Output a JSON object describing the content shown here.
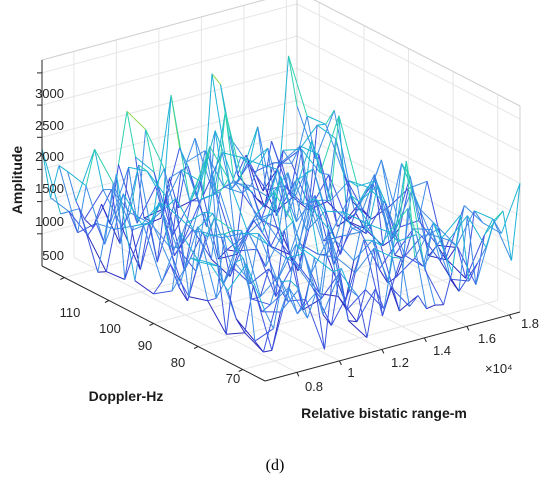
{
  "chart_data": {
    "type": "surface-mesh-3d",
    "zlabel": "Amplitude",
    "ylabel": "Doppler-Hz",
    "xlabel": "Relative bistatic range-m",
    "x_exponent_label": "×10⁴",
    "caption": "(d)",
    "x_ticks": [
      "0.8",
      "1",
      "1.2",
      "1.4",
      "1.6",
      "1.8"
    ],
    "y_ticks": [
      "70",
      "80",
      "90",
      "100",
      "110"
    ],
    "z_ticks": [
      "500",
      "1000",
      "1500",
      "2000",
      "2500",
      "3000"
    ],
    "xlim": [
      6500,
      18500
    ],
    "ylim": [
      65,
      115
    ],
    "zlim": [
      0,
      3200
    ],
    "grid": true,
    "colormap": [
      "#2a2abf",
      "#3c56e0",
      "#3e8de6",
      "#1fb3d6",
      "#2ed1b0",
      "#8fd64a",
      "#e8d81e",
      "#ffe100"
    ],
    "peaks": [
      {
        "x": 10600,
        "y": 113,
        "z": 3200
      },
      {
        "x": 18200,
        "y": 114,
        "z": 2600
      },
      {
        "x": 11800,
        "y": 110,
        "z": 2650
      },
      {
        "x": 6700,
        "y": 113,
        "z": 1900
      },
      {
        "x": 8200,
        "y": 112,
        "z": 2200
      },
      {
        "x": 14200,
        "y": 108,
        "z": 1650
      },
      {
        "x": 12600,
        "y": 100,
        "z": 1500
      }
    ]
  }
}
